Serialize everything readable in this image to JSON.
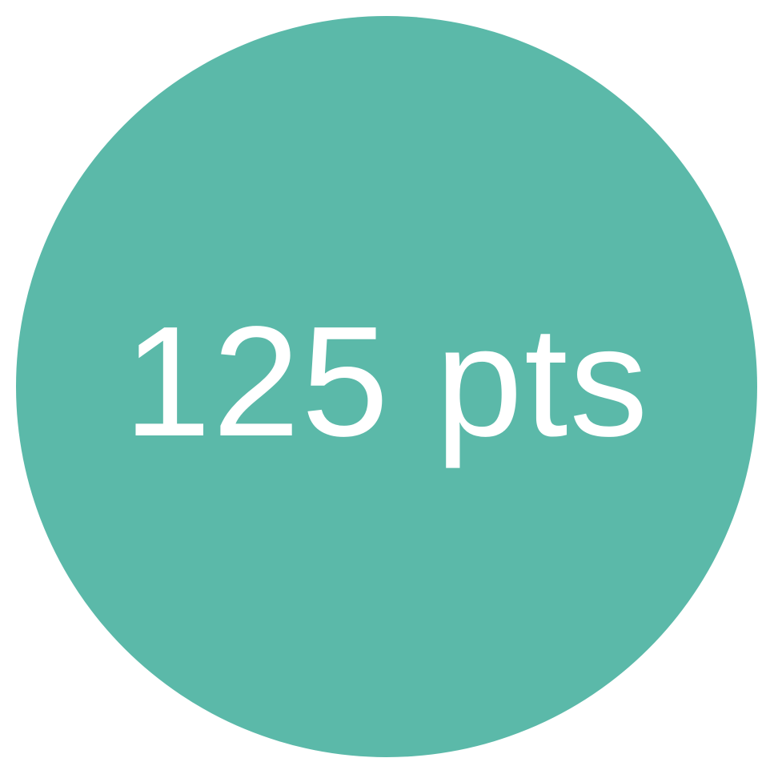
{
  "badge": {
    "label": "125 pts",
    "color": "#5BB9A9",
    "text_color": "#FFFFFF"
  }
}
